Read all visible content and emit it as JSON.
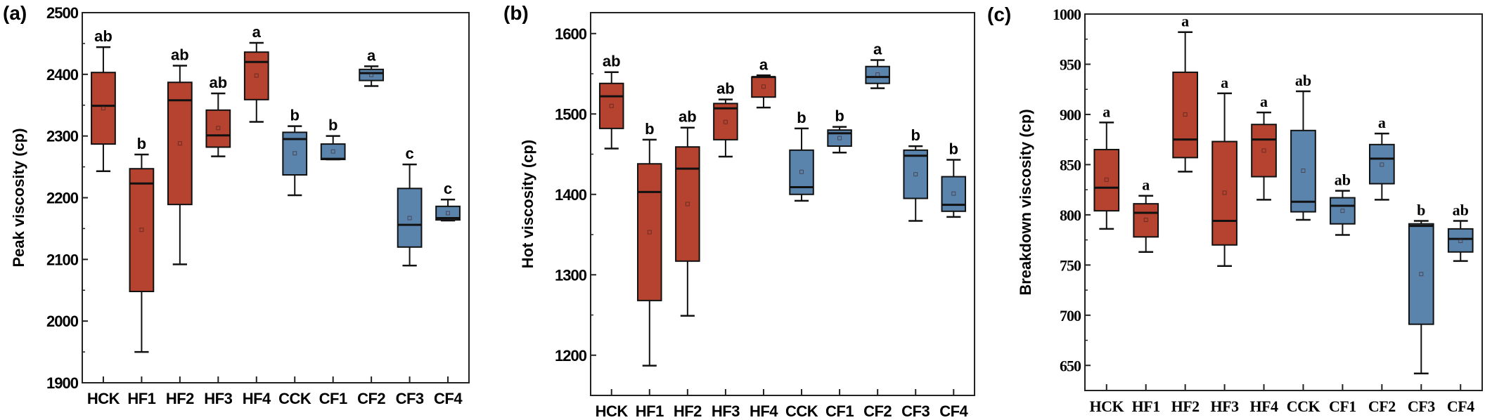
{
  "colors": {
    "heated": "#b5432f",
    "cold": "#5b84ad",
    "line": "#111111"
  },
  "chart_data": [
    {
      "type": "box",
      "panel_label": "(a)",
      "ylabel": "Peak viscosity (cp)",
      "ylim": [
        1900,
        2500
      ],
      "yticks": [
        1900,
        2000,
        2100,
        2200,
        2300,
        2400,
        2500
      ],
      "minor_step": 50,
      "categories": [
        "HCK",
        "HF1",
        "HF2",
        "HF3",
        "HF4",
        "CCK",
        "CF1",
        "CF2",
        "CF3",
        "CF4"
      ],
      "groups": [
        "heated",
        "heated",
        "heated",
        "heated",
        "heated",
        "cold",
        "cold",
        "cold",
        "cold",
        "cold"
      ],
      "letters": [
        "ab",
        "b",
        "ab",
        "ab",
        "a",
        "b",
        "b",
        "a",
        "c",
        "c"
      ],
      "boxes": [
        {
          "min": 2243,
          "q1": 2287,
          "median": 2349,
          "q3": 2403,
          "max": 2444,
          "mean": 2345
        },
        {
          "min": 1950,
          "q1": 2048,
          "median": 2223,
          "q3": 2247,
          "max": 2270,
          "mean": 2148
        },
        {
          "min": 2092,
          "q1": 2189,
          "median": 2358,
          "q3": 2387,
          "max": 2414,
          "mean": 2288
        },
        {
          "min": 2267,
          "q1": 2282,
          "median": 2301,
          "q3": 2342,
          "max": 2369,
          "mean": 2313
        },
        {
          "min": 2323,
          "q1": 2359,
          "median": 2420,
          "q3": 2436,
          "max": 2451,
          "mean": 2398
        },
        {
          "min": 2204,
          "q1": 2237,
          "median": 2295,
          "q3": 2306,
          "max": 2316,
          "mean": 2272
        },
        {
          "min": 2262,
          "q1": 2262,
          "median": 2263,
          "q3": 2287,
          "max": 2300,
          "mean": 2275
        },
        {
          "min": 2381,
          "q1": 2390,
          "median": 2402,
          "q3": 2408,
          "max": 2413,
          "mean": 2399
        },
        {
          "min": 2090,
          "q1": 2120,
          "median": 2156,
          "q3": 2215,
          "max": 2254,
          "mean": 2167
        },
        {
          "min": 2163,
          "q1": 2164,
          "median": 2167,
          "q3": 2186,
          "max": 2197,
          "mean": 2175
        }
      ]
    },
    {
      "type": "box",
      "panel_label": "(b)",
      "ylabel": "Hot viscosity (cp)",
      "ylim": [
        1150,
        1626
      ],
      "yticks": [
        1200,
        1300,
        1400,
        1500,
        1600
      ],
      "minor_step": 50,
      "categories": [
        "HCK",
        "HF1",
        "HF2",
        "HF3",
        "HF4",
        "CCK",
        "CF1",
        "CF2",
        "CF3",
        "CF4"
      ],
      "groups": [
        "heated",
        "heated",
        "heated",
        "heated",
        "heated",
        "cold",
        "cold",
        "cold",
        "cold",
        "cold"
      ],
      "letters": [
        "ab",
        "b",
        "ab",
        "ab",
        "a",
        "b",
        "b",
        "a",
        "b",
        "b"
      ],
      "boxes": [
        {
          "min": 1457,
          "q1": 1482,
          "median": 1522,
          "q3": 1538,
          "max": 1552,
          "mean": 1510
        },
        {
          "min": 1187,
          "q1": 1268,
          "median": 1403,
          "q3": 1438,
          "max": 1468,
          "mean": 1353
        },
        {
          "min": 1249,
          "q1": 1317,
          "median": 1432,
          "q3": 1459,
          "max": 1483,
          "mean": 1388
        },
        {
          "min": 1447,
          "q1": 1468,
          "median": 1507,
          "q3": 1513,
          "max": 1518,
          "mean": 1490
        },
        {
          "min": 1508,
          "q1": 1521,
          "median": 1546,
          "q3": 1546,
          "max": 1548,
          "mean": 1534
        },
        {
          "min": 1392,
          "q1": 1400,
          "median": 1409,
          "q3": 1455,
          "max": 1482,
          "mean": 1428
        },
        {
          "min": 1452,
          "q1": 1460,
          "median": 1476,
          "q3": 1480,
          "max": 1484,
          "mean": 1470
        },
        {
          "min": 1532,
          "q1": 1538,
          "median": 1546,
          "q3": 1559,
          "max": 1567,
          "mean": 1549
        },
        {
          "min": 1367,
          "q1": 1395,
          "median": 1448,
          "q3": 1455,
          "max": 1460,
          "mean": 1425
        },
        {
          "min": 1372,
          "q1": 1379,
          "median": 1387,
          "q3": 1422,
          "max": 1443,
          "mean": 1401
        }
      ]
    },
    {
      "type": "box",
      "panel_label": "(c)",
      "ylabel": "Breakdown viscosity (cp)",
      "ylim": [
        625,
        1000
      ],
      "yticks": [
        650,
        700,
        750,
        800,
        850,
        900,
        950,
        1000
      ],
      "minor_step": 25,
      "categories": [
        "HCK",
        "HF1",
        "HF2",
        "HF3",
        "HF4",
        "CCK",
        "CF1",
        "CF2",
        "CF3",
        "CF4"
      ],
      "groups": [
        "heated",
        "heated",
        "heated",
        "heated",
        "heated",
        "cold",
        "cold",
        "cold",
        "cold",
        "cold"
      ],
      "letters": [
        "a",
        "a",
        "a",
        "a",
        "a",
        "ab",
        "ab",
        "a",
        "b",
        "ab"
      ],
      "boxes": [
        {
          "min": 786,
          "q1": 804,
          "median": 827,
          "q3": 865,
          "max": 892,
          "mean": 835
        },
        {
          "min": 763,
          "q1": 778,
          "median": 802,
          "q3": 811,
          "max": 819,
          "mean": 795
        },
        {
          "min": 843,
          "q1": 857,
          "median": 875,
          "q3": 942,
          "max": 982,
          "mean": 900
        },
        {
          "min": 749,
          "q1": 770,
          "median": 794,
          "q3": 873,
          "max": 921,
          "mean": 822
        },
        {
          "min": 815,
          "q1": 838,
          "median": 875,
          "q3": 890,
          "max": 902,
          "mean": 864
        },
        {
          "min": 795,
          "q1": 803,
          "median": 813,
          "q3": 884,
          "max": 923,
          "mean": 844
        },
        {
          "min": 780,
          "q1": 791,
          "median": 809,
          "q3": 817,
          "max": 824,
          "mean": 804
        },
        {
          "min": 815,
          "q1": 831,
          "median": 856,
          "q3": 870,
          "max": 881,
          "mean": 850
        },
        {
          "min": 642,
          "q1": 691,
          "median": 789,
          "q3": 791,
          "max": 794,
          "mean": 741
        },
        {
          "min": 754,
          "q1": 763,
          "median": 776,
          "q3": 786,
          "max": 794,
          "mean": 774
        }
      ]
    }
  ]
}
